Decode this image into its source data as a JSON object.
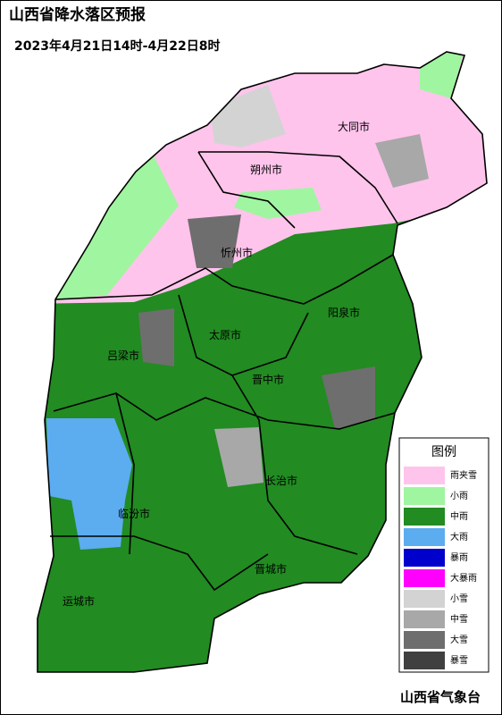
{
  "title": "山西省降水落区预报",
  "subtitle": "2023年4月21日14时-4月22日8时",
  "cities": [
    "大同市",
    "朔州市",
    "忻州市",
    "阳泉市",
    "太原市",
    "吕梁市",
    "晋中市",
    "长治市",
    "临汾市",
    "晋城市",
    "运城市"
  ],
  "legend": {
    "title": "图例",
    "items": [
      {
        "label": "雨夹雪",
        "color": "#ffc4ec"
      },
      {
        "label": "小雨",
        "color": "#a0f5a0"
      },
      {
        "label": "中雨",
        "color": "#228b22"
      },
      {
        "label": "大雨",
        "color": "#5cacf0"
      },
      {
        "label": "暴雨",
        "color": "#0000cd"
      },
      {
        "label": "大暴雨",
        "color": "#ff00ff"
      },
      {
        "label": "小雪",
        "color": "#d3d3d3"
      },
      {
        "label": "中雪",
        "color": "#a8a8a8"
      },
      {
        "label": "大雪",
        "color": "#6e6e6e"
      },
      {
        "label": "暴雪",
        "color": "#404040"
      }
    ]
  },
  "footer": "山西省气象台"
}
